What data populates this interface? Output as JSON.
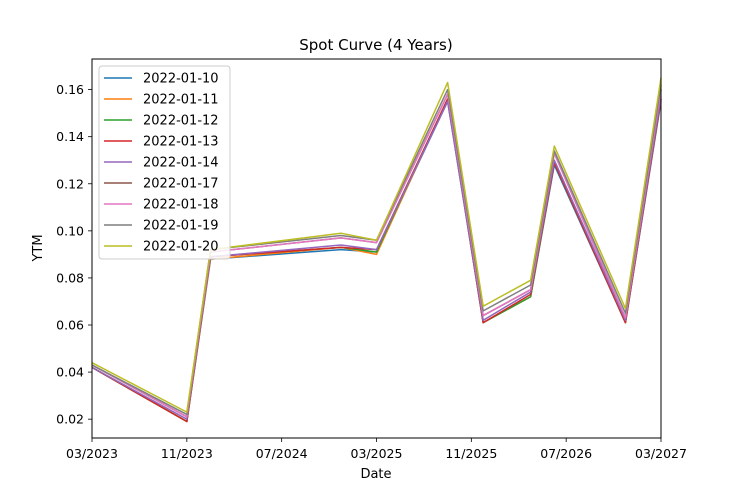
{
  "chart_data": {
    "type": "line",
    "title": "Spot Curve (4 Years)",
    "xlabel": "Date",
    "ylabel": "YTM",
    "x_ticks": [
      "03/2023",
      "11/2023",
      "07/2024",
      "03/2025",
      "11/2025",
      "07/2026",
      "03/2027"
    ],
    "y_ticks": [
      "0.02",
      "0.04",
      "0.06",
      "0.08",
      "0.10",
      "0.12",
      "0.14",
      "0.16"
    ],
    "x": [
      "2023-03",
      "2023-11",
      "2024-01",
      "2024-12",
      "2025-03",
      "2025-09",
      "2025-12",
      "2026-04",
      "2026-06",
      "2026-12",
      "2027-03"
    ],
    "xlim": [
      "2023-03",
      "2027-03"
    ],
    "ylim": [
      0.012,
      0.173
    ],
    "grid": false,
    "legend_position": "top-left",
    "series": [
      {
        "name": "2022-01-10",
        "color": "#1f77b4",
        "values": [
          0.042,
          0.019,
          0.088,
          0.092,
          0.091,
          0.155,
          0.061,
          0.072,
          0.128,
          0.061,
          0.155
        ]
      },
      {
        "name": "2022-01-11",
        "color": "#ff7f0e",
        "values": [
          0.042,
          0.019,
          0.088,
          0.093,
          0.09,
          0.156,
          0.061,
          0.072,
          0.129,
          0.061,
          0.156
        ]
      },
      {
        "name": "2022-01-12",
        "color": "#2ca02c",
        "values": [
          0.042,
          0.019,
          0.089,
          0.093,
          0.091,
          0.156,
          0.061,
          0.072,
          0.129,
          0.061,
          0.156
        ]
      },
      {
        "name": "2022-01-13",
        "color": "#d62728",
        "values": [
          0.042,
          0.019,
          0.089,
          0.093,
          0.092,
          0.156,
          0.061,
          0.073,
          0.129,
          0.061,
          0.156
        ]
      },
      {
        "name": "2022-01-14",
        "color": "#9467bd",
        "values": [
          0.042,
          0.02,
          0.089,
          0.094,
          0.092,
          0.155,
          0.062,
          0.074,
          0.13,
          0.062,
          0.157
        ]
      },
      {
        "name": "2022-01-17",
        "color": "#8c564b",
        "values": [
          0.043,
          0.021,
          0.091,
          0.097,
          0.095,
          0.158,
          0.064,
          0.075,
          0.133,
          0.063,
          0.16
        ]
      },
      {
        "name": "2022-01-18",
        "color": "#e377c2",
        "values": [
          0.043,
          0.021,
          0.091,
          0.097,
          0.095,
          0.158,
          0.064,
          0.075,
          0.133,
          0.063,
          0.16
        ]
      },
      {
        "name": "2022-01-19",
        "color": "#7f7f7f",
        "values": [
          0.043,
          0.022,
          0.092,
          0.098,
          0.096,
          0.16,
          0.066,
          0.077,
          0.134,
          0.065,
          0.162
        ]
      },
      {
        "name": "2022-01-20",
        "color": "#bcbd22",
        "values": [
          0.044,
          0.023,
          0.092,
          0.099,
          0.096,
          0.163,
          0.068,
          0.079,
          0.136,
          0.067,
          0.165
        ]
      }
    ]
  }
}
